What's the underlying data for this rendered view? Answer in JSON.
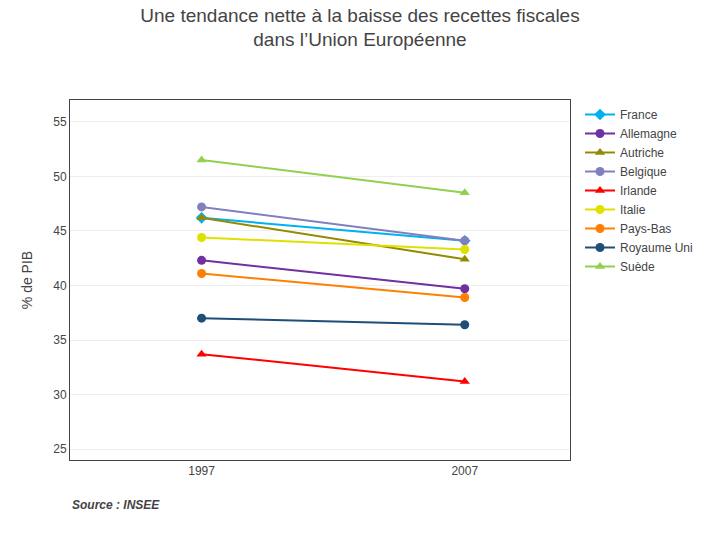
{
  "chart_data": {
    "type": "line",
    "title": "Une tendance nette à la baisse des recettes fiscales\ndans l’Union Européenne",
    "y_label": "% de PIB",
    "annotations": [
      "Source : INSEE"
    ],
    "x": [
      1997,
      2007
    ],
    "series": [
      {
        "name": "France",
        "color": "#00b0f0",
        "marker": "diamond",
        "values": [
          46.2,
          44.1
        ]
      },
      {
        "name": "Allemagne",
        "color": "#7030a0",
        "marker": "circle",
        "values": [
          42.3,
          39.7
        ]
      },
      {
        "name": "Autriche",
        "color": "#948a00",
        "marker": "triangle-up",
        "values": [
          46.2,
          42.4
        ]
      },
      {
        "name": "Belgique",
        "color": "#8080c0",
        "marker": "circle",
        "values": [
          47.2,
          44.1
        ]
      },
      {
        "name": "Irlande",
        "color": "#ff0000",
        "marker": "triangle-up",
        "values": [
          33.7,
          31.2
        ]
      },
      {
        "name": "Italie",
        "color": "#e0e000",
        "marker": "circle",
        "values": [
          44.4,
          43.3
        ]
      },
      {
        "name": "Pays-Bas",
        "color": "#ff8000",
        "marker": "circle",
        "values": [
          41.1,
          38.9
        ]
      },
      {
        "name": "Royaume Uni",
        "color": "#1f4e79",
        "marker": "circle",
        "values": [
          37.0,
          36.4
        ]
      },
      {
        "name": "Suède",
        "color": "#92d050",
        "marker": "triangle-up",
        "values": [
          51.5,
          48.5
        ]
      }
    ],
    "xlim": [
      1992,
      2011
    ],
    "xticks": [
      1997,
      2007
    ],
    "ylim": [
      24,
      57
    ],
    "yticks": [
      25,
      30,
      35,
      40,
      45,
      50,
      55
    ],
    "grid": true,
    "legend": "upper right"
  }
}
